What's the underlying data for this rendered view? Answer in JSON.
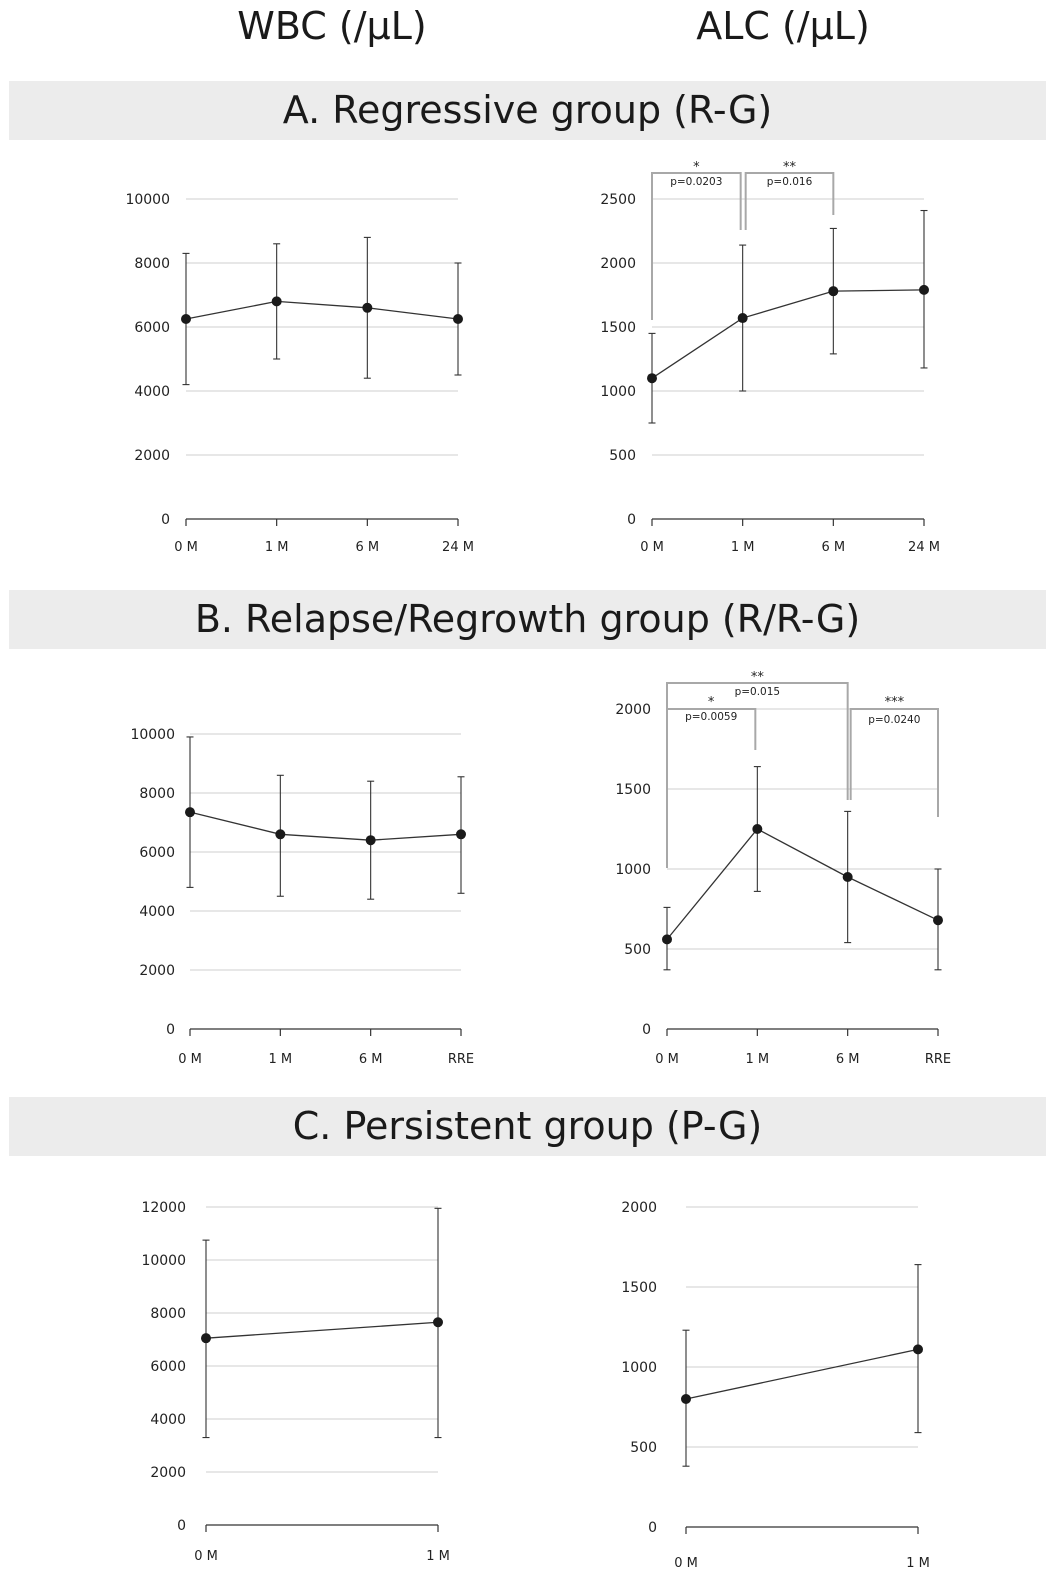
{
  "column_titles": {
    "left": "WBC (/μL)",
    "right": "ALC (/μL)"
  },
  "group_titles": {
    "a": "A. Regressive group (R-G)",
    "b": "B. Relapse/Regrowth group (R/R-G)",
    "c": "C. Persistent group (P-G)"
  },
  "chart_data": [
    {
      "id": "A-WBC",
      "type": "line",
      "title": "",
      "xlabel": "",
      "ylabel": "",
      "categories": [
        "0 M",
        "1 M",
        "6 M",
        "24 M"
      ],
      "values": [
        6250,
        6800,
        6600,
        6250
      ],
      "error_low": [
        4200,
        5000,
        4400,
        4500
      ],
      "error_high": [
        8300,
        8600,
        8800,
        8000
      ],
      "ylim": [
        0,
        10000
      ],
      "yticks": [
        0,
        2000,
        4000,
        6000,
        8000,
        10000
      ],
      "grid": true,
      "significance": []
    },
    {
      "id": "A-ALC",
      "type": "line",
      "title": "",
      "xlabel": "",
      "ylabel": "",
      "categories": [
        "0 M",
        "1 M",
        "6 M",
        "24 M"
      ],
      "values": [
        1100,
        1570,
        1780,
        1790
      ],
      "error_low": [
        750,
        1000,
        1290,
        1180
      ],
      "error_high": [
        1450,
        2140,
        2270,
        2410
      ],
      "ylim": [
        0,
        2500
      ],
      "yticks": [
        0,
        500,
        1000,
        1500,
        2000,
        2500
      ],
      "grid": true,
      "significance": [
        {
          "from": 0,
          "to": 1,
          "stars": "*",
          "p": "p=0.0203"
        },
        {
          "from": 1,
          "to": 2,
          "stars": "**",
          "p": "p=0.016"
        }
      ]
    },
    {
      "id": "B-WBC",
      "type": "line",
      "title": "",
      "xlabel": "",
      "ylabel": "",
      "categories": [
        "0 M",
        "1 M",
        "6 M",
        "RRE"
      ],
      "values": [
        7350,
        6600,
        6400,
        6600
      ],
      "error_low": [
        4800,
        4500,
        4400,
        4600
      ],
      "error_high": [
        9900,
        8600,
        8400,
        8550
      ],
      "ylim": [
        0,
        10000
      ],
      "yticks": [
        0,
        2000,
        4000,
        6000,
        8000,
        10000
      ],
      "grid": true,
      "significance": []
    },
    {
      "id": "B-ALC",
      "type": "line",
      "title": "",
      "xlabel": "",
      "ylabel": "",
      "categories": [
        "0 M",
        "1 M",
        "6 M",
        "RRE"
      ],
      "values": [
        560,
        1250,
        950,
        680
      ],
      "error_low": [
        370,
        860,
        540,
        370
      ],
      "error_high": [
        760,
        1640,
        1360,
        1000
      ],
      "ylim": [
        0,
        2000
      ],
      "yticks": [
        0,
        500,
        1000,
        1500,
        2000
      ],
      "grid": true,
      "significance": [
        {
          "from": 0,
          "to": 1,
          "stars": "*",
          "p": "p=0.0059"
        },
        {
          "from": 0,
          "to": 2,
          "stars": "**",
          "p": "p=0.015"
        },
        {
          "from": 2,
          "to": 3,
          "stars": "***",
          "p": "p=0.0240"
        }
      ]
    },
    {
      "id": "C-WBC",
      "type": "line",
      "title": "",
      "xlabel": "",
      "ylabel": "",
      "categories": [
        "0 M",
        "1 M"
      ],
      "values": [
        7050,
        7650
      ],
      "error_low": [
        3300,
        3300
      ],
      "error_high": [
        10750,
        11950
      ],
      "ylim": [
        0,
        12000
      ],
      "yticks": [
        0,
        2000,
        4000,
        6000,
        8000,
        10000,
        12000
      ],
      "grid": true,
      "significance": []
    },
    {
      "id": "C-ALC",
      "type": "line",
      "title": "",
      "xlabel": "",
      "ylabel": "",
      "categories": [
        "0 M",
        "1 M"
      ],
      "values": [
        800,
        1110
      ],
      "error_low": [
        380,
        590
      ],
      "error_high": [
        1230,
        1640
      ],
      "ylim": [
        0,
        2000
      ],
      "yticks": [
        0,
        500,
        1000,
        1500,
        2000
      ],
      "grid": true,
      "significance": []
    }
  ]
}
